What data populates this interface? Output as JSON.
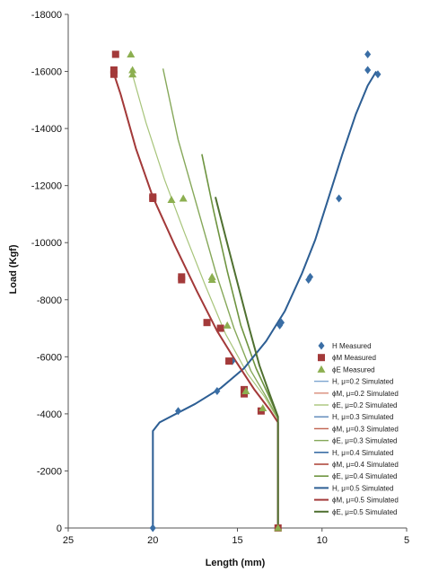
{
  "chart_data": {
    "type": "line",
    "xlabel": "Length (mm)",
    "ylabel": "Load (Kgf)",
    "xlim": [
      25,
      5
    ],
    "ylim": [
      0,
      -18000
    ],
    "x_ticks": [
      25,
      20,
      15,
      10,
      5
    ],
    "y_ticks": [
      0,
      -2000,
      -4000,
      -6000,
      -8000,
      -10000,
      -12000,
      -14000,
      -16000,
      -18000
    ],
    "grid": false,
    "legend_position": "right",
    "colors": {
      "H": "#2E5F94",
      "phiM": "#A33A3A",
      "phiE": "#5F8C30",
      "H_light": "#7EA6D0",
      "phiM_light": "#D98C7A",
      "phiE_light": "#A7C47A",
      "phiE_dark": "#3F5F22"
    },
    "measured": [
      {
        "name": "H Measured",
        "marker": "diamond",
        "color": "#3A6EA5",
        "points": [
          [
            20,
            0
          ],
          [
            18.5,
            -4100
          ],
          [
            16.2,
            -4800
          ],
          [
            15.3,
            -5850
          ],
          [
            12.5,
            -7100
          ],
          [
            12.4,
            -7200
          ],
          [
            10.8,
            -8700
          ],
          [
            10.7,
            -8800
          ],
          [
            9.0,
            -11550
          ],
          [
            7.3,
            -16050
          ],
          [
            7.3,
            -16600
          ],
          [
            6.7,
            -15900
          ]
        ]
      },
      {
        "name": "ϕM Measured",
        "marker": "square",
        "color": "#A33A3A",
        "points": [
          [
            12.6,
            0
          ],
          [
            13.6,
            -4100
          ],
          [
            14.6,
            -4700
          ],
          [
            14.6,
            -4850
          ],
          [
            15.5,
            -5850
          ],
          [
            16.0,
            -7000
          ],
          [
            16.8,
            -7200
          ],
          [
            18.3,
            -8700
          ],
          [
            18.3,
            -8800
          ],
          [
            20.0,
            -11550
          ],
          [
            20.0,
            -11600
          ],
          [
            22.3,
            -15900
          ],
          [
            22.3,
            -16050
          ],
          [
            22.2,
            -16600
          ]
        ]
      },
      {
        "name": "ϕE Measured",
        "marker": "triangle",
        "color": "#8CAF50",
        "points": [
          [
            12.6,
            0
          ],
          [
            13.5,
            -4200
          ],
          [
            14.5,
            -4800
          ],
          [
            15.6,
            -7100
          ],
          [
            16.5,
            -8700
          ],
          [
            16.5,
            -8800
          ],
          [
            18.2,
            -11550
          ],
          [
            18.9,
            -11500
          ],
          [
            21.2,
            -15900
          ],
          [
            21.2,
            -16050
          ],
          [
            21.3,
            -16600
          ]
        ]
      }
    ],
    "series": [
      {
        "name": "H, μ=0.2 Simulated",
        "color": "#7EA6D0",
        "width": 1.2,
        "points": [
          [
            20.0,
            0
          ],
          [
            20.0,
            -3400
          ],
          [
            19.6,
            -3700
          ],
          [
            18.8,
            -3950
          ],
          [
            17.5,
            -4350
          ],
          [
            16.0,
            -4900
          ],
          [
            14.6,
            -5600
          ],
          [
            13.3,
            -6550
          ],
          [
            12.2,
            -7600
          ],
          [
            11.2,
            -8900
          ],
          [
            10.4,
            -10100
          ],
          [
            9.6,
            -11600
          ],
          [
            8.8,
            -13100
          ],
          [
            8.0,
            -14500
          ],
          [
            7.3,
            -15500
          ],
          [
            6.8,
            -16000
          ]
        ]
      },
      {
        "name": "ϕM, μ=0.2 Simulated",
        "color": "#D98C7A",
        "width": 1.2,
        "points": [
          [
            12.6,
            0
          ],
          [
            12.6,
            -3700
          ],
          [
            13.1,
            -4150
          ],
          [
            14.0,
            -4850
          ],
          [
            15.1,
            -5850
          ],
          [
            16.2,
            -6900
          ],
          [
            17.4,
            -8300
          ],
          [
            18.7,
            -9900
          ],
          [
            20.0,
            -11600
          ],
          [
            21.0,
            -13300
          ],
          [
            21.9,
            -15200
          ],
          [
            22.4,
            -16100
          ]
        ]
      },
      {
        "name": "ϕE, μ=0.2 Simulated",
        "color": "#A7C47A",
        "width": 1.2,
        "points": [
          [
            12.6,
            0
          ],
          [
            12.6,
            -3800
          ],
          [
            13.4,
            -4600
          ],
          [
            14.4,
            -5400
          ],
          [
            15.7,
            -6800
          ],
          [
            16.9,
            -8500
          ],
          [
            18.1,
            -10300
          ],
          [
            19.3,
            -12200
          ],
          [
            20.4,
            -14200
          ],
          [
            21.3,
            -16100
          ]
        ]
      },
      {
        "name": "H, μ=0.3 Simulated",
        "color": "#5A86B8",
        "width": 1.4,
        "points": [
          [
            20.0,
            0
          ],
          [
            20.0,
            -3400
          ],
          [
            19.6,
            -3700
          ],
          [
            18.8,
            -3950
          ],
          [
            17.5,
            -4350
          ],
          [
            16.0,
            -4900
          ],
          [
            14.6,
            -5600
          ],
          [
            13.3,
            -6550
          ],
          [
            12.2,
            -7600
          ],
          [
            11.2,
            -8900
          ],
          [
            10.4,
            -10100
          ],
          [
            9.6,
            -11600
          ],
          [
            8.8,
            -13100
          ],
          [
            8.0,
            -14500
          ],
          [
            7.3,
            -15500
          ],
          [
            6.8,
            -16000
          ]
        ]
      },
      {
        "name": "ϕM, μ=0.3 Simulated",
        "color": "#C0624F",
        "width": 1.4,
        "points": [
          [
            12.6,
            0
          ],
          [
            12.6,
            -3700
          ],
          [
            13.1,
            -4150
          ],
          [
            14.0,
            -4850
          ],
          [
            15.1,
            -5850
          ],
          [
            16.2,
            -6900
          ],
          [
            17.4,
            -8300
          ],
          [
            18.7,
            -9900
          ],
          [
            20.0,
            -11600
          ],
          [
            21.0,
            -13300
          ],
          [
            21.9,
            -15200
          ],
          [
            22.4,
            -16100
          ]
        ]
      },
      {
        "name": "ϕE, μ=0.3 Simulated",
        "color": "#86A85A",
        "width": 1.4,
        "points": [
          [
            12.6,
            0
          ],
          [
            12.6,
            -3850
          ],
          [
            13.3,
            -4600
          ],
          [
            14.2,
            -5500
          ],
          [
            15.2,
            -7000
          ],
          [
            16.3,
            -9000
          ],
          [
            17.4,
            -11300
          ],
          [
            18.5,
            -13600
          ],
          [
            19.4,
            -16100
          ]
        ]
      },
      {
        "name": "H, μ=0.4 Simulated",
        "color": "#3A6EA5",
        "width": 1.6,
        "points": [
          [
            20.0,
            0
          ],
          [
            20.0,
            -3400
          ],
          [
            19.6,
            -3700
          ],
          [
            18.8,
            -3950
          ],
          [
            17.5,
            -4350
          ],
          [
            16.0,
            -4900
          ],
          [
            14.6,
            -5600
          ],
          [
            13.3,
            -6550
          ],
          [
            12.2,
            -7600
          ],
          [
            11.2,
            -8900
          ],
          [
            10.4,
            -10100
          ],
          [
            9.6,
            -11600
          ],
          [
            8.8,
            -13100
          ],
          [
            8.0,
            -14500
          ],
          [
            7.3,
            -15500
          ],
          [
            6.8,
            -16000
          ]
        ]
      },
      {
        "name": "ϕM, μ=0.4 Simulated",
        "color": "#B04A3E",
        "width": 1.6,
        "points": [
          [
            12.6,
            0
          ],
          [
            12.6,
            -3700
          ],
          [
            13.1,
            -4150
          ],
          [
            14.0,
            -4850
          ],
          [
            15.1,
            -5850
          ],
          [
            16.2,
            -6900
          ],
          [
            17.4,
            -8300
          ],
          [
            18.7,
            -9900
          ],
          [
            20.0,
            -11600
          ],
          [
            21.0,
            -13300
          ],
          [
            21.9,
            -15200
          ],
          [
            22.4,
            -16100
          ]
        ]
      },
      {
        "name": "ϕE, μ=0.4 Simulated",
        "color": "#6E9440",
        "width": 1.6,
        "points": [
          [
            12.6,
            0
          ],
          [
            12.6,
            -3900
          ],
          [
            13.2,
            -4700
          ],
          [
            13.9,
            -5600
          ],
          [
            14.8,
            -7100
          ],
          [
            15.6,
            -9000
          ],
          [
            16.4,
            -11100
          ],
          [
            17.1,
            -13100
          ]
        ]
      },
      {
        "name": "H, μ=0.5 Simulated",
        "color": "#2E5F94",
        "width": 2.0,
        "points": [
          [
            20.0,
            0
          ],
          [
            20.0,
            -3400
          ],
          [
            19.6,
            -3700
          ],
          [
            18.8,
            -3950
          ],
          [
            17.5,
            -4350
          ],
          [
            16.0,
            -4900
          ],
          [
            14.6,
            -5600
          ],
          [
            13.3,
            -6550
          ],
          [
            12.2,
            -7600
          ],
          [
            11.2,
            -8900
          ],
          [
            10.4,
            -10100
          ],
          [
            9.6,
            -11600
          ],
          [
            8.8,
            -13100
          ],
          [
            8.0,
            -14500
          ],
          [
            7.3,
            -15500
          ],
          [
            6.8,
            -16000
          ]
        ]
      },
      {
        "name": "ϕM, μ=0.5 Simulated",
        "color": "#A33A3A",
        "width": 2.0,
        "points": [
          [
            12.6,
            0
          ],
          [
            12.6,
            -3700
          ],
          [
            13.1,
            -4150
          ],
          [
            14.0,
            -4850
          ],
          [
            15.1,
            -5850
          ],
          [
            16.2,
            -6900
          ],
          [
            17.4,
            -8300
          ],
          [
            18.7,
            -9900
          ],
          [
            20.0,
            -11600
          ],
          [
            21.0,
            -13300
          ],
          [
            21.9,
            -15200
          ],
          [
            22.4,
            -16100
          ]
        ]
      },
      {
        "name": "ϕE, μ=0.5 Simulated",
        "color": "#4F7030",
        "width": 2.0,
        "points": [
          [
            12.6,
            0
          ],
          [
            12.6,
            -3900
          ],
          [
            13.1,
            -4700
          ],
          [
            13.7,
            -5700
          ],
          [
            14.3,
            -7000
          ],
          [
            15.0,
            -8600
          ],
          [
            15.7,
            -10200
          ],
          [
            16.3,
            -11600
          ]
        ]
      }
    ]
  }
}
